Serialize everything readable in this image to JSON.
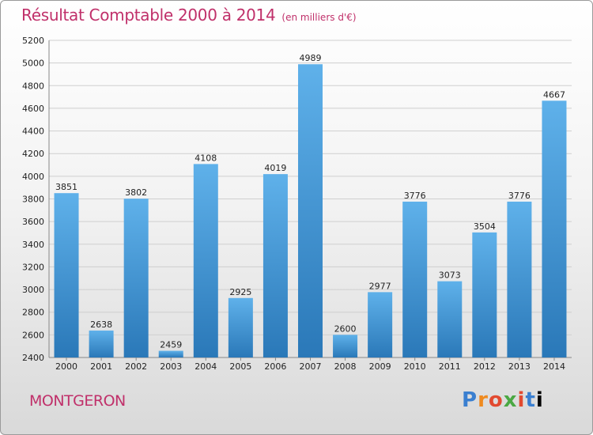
{
  "header": {
    "title": "Résultat Comptable 2000 à 2014",
    "subtitle": "(en milliers d'€)"
  },
  "footer": {
    "city": "MONTGERON",
    "logo": "Proxiti"
  },
  "colors": {
    "accent": "#c0306a",
    "bar_light": "#5fb1ea",
    "bar_dark": "#2a78b8"
  },
  "chart_data": {
    "type": "bar",
    "title": "Résultat Comptable 2000 à 2014",
    "subtitle": "(en milliers d'€)",
    "xlabel": "",
    "ylabel": "",
    "categories": [
      "2000",
      "2001",
      "2002",
      "2003",
      "2004",
      "2005",
      "2006",
      "2007",
      "2008",
      "2009",
      "2010",
      "2011",
      "2012",
      "2013",
      "2014"
    ],
    "values": [
      3851,
      2638,
      3802,
      2459,
      4108,
      2925,
      4019,
      4989,
      2600,
      2977,
      3776,
      3073,
      3504,
      3776,
      4667
    ],
    "ylim": [
      2400,
      5200
    ],
    "yticks": [
      2400,
      2600,
      2800,
      3000,
      3200,
      3400,
      3600,
      3800,
      4000,
      4200,
      4400,
      4600,
      4800,
      5000,
      5200
    ],
    "grid": true
  }
}
